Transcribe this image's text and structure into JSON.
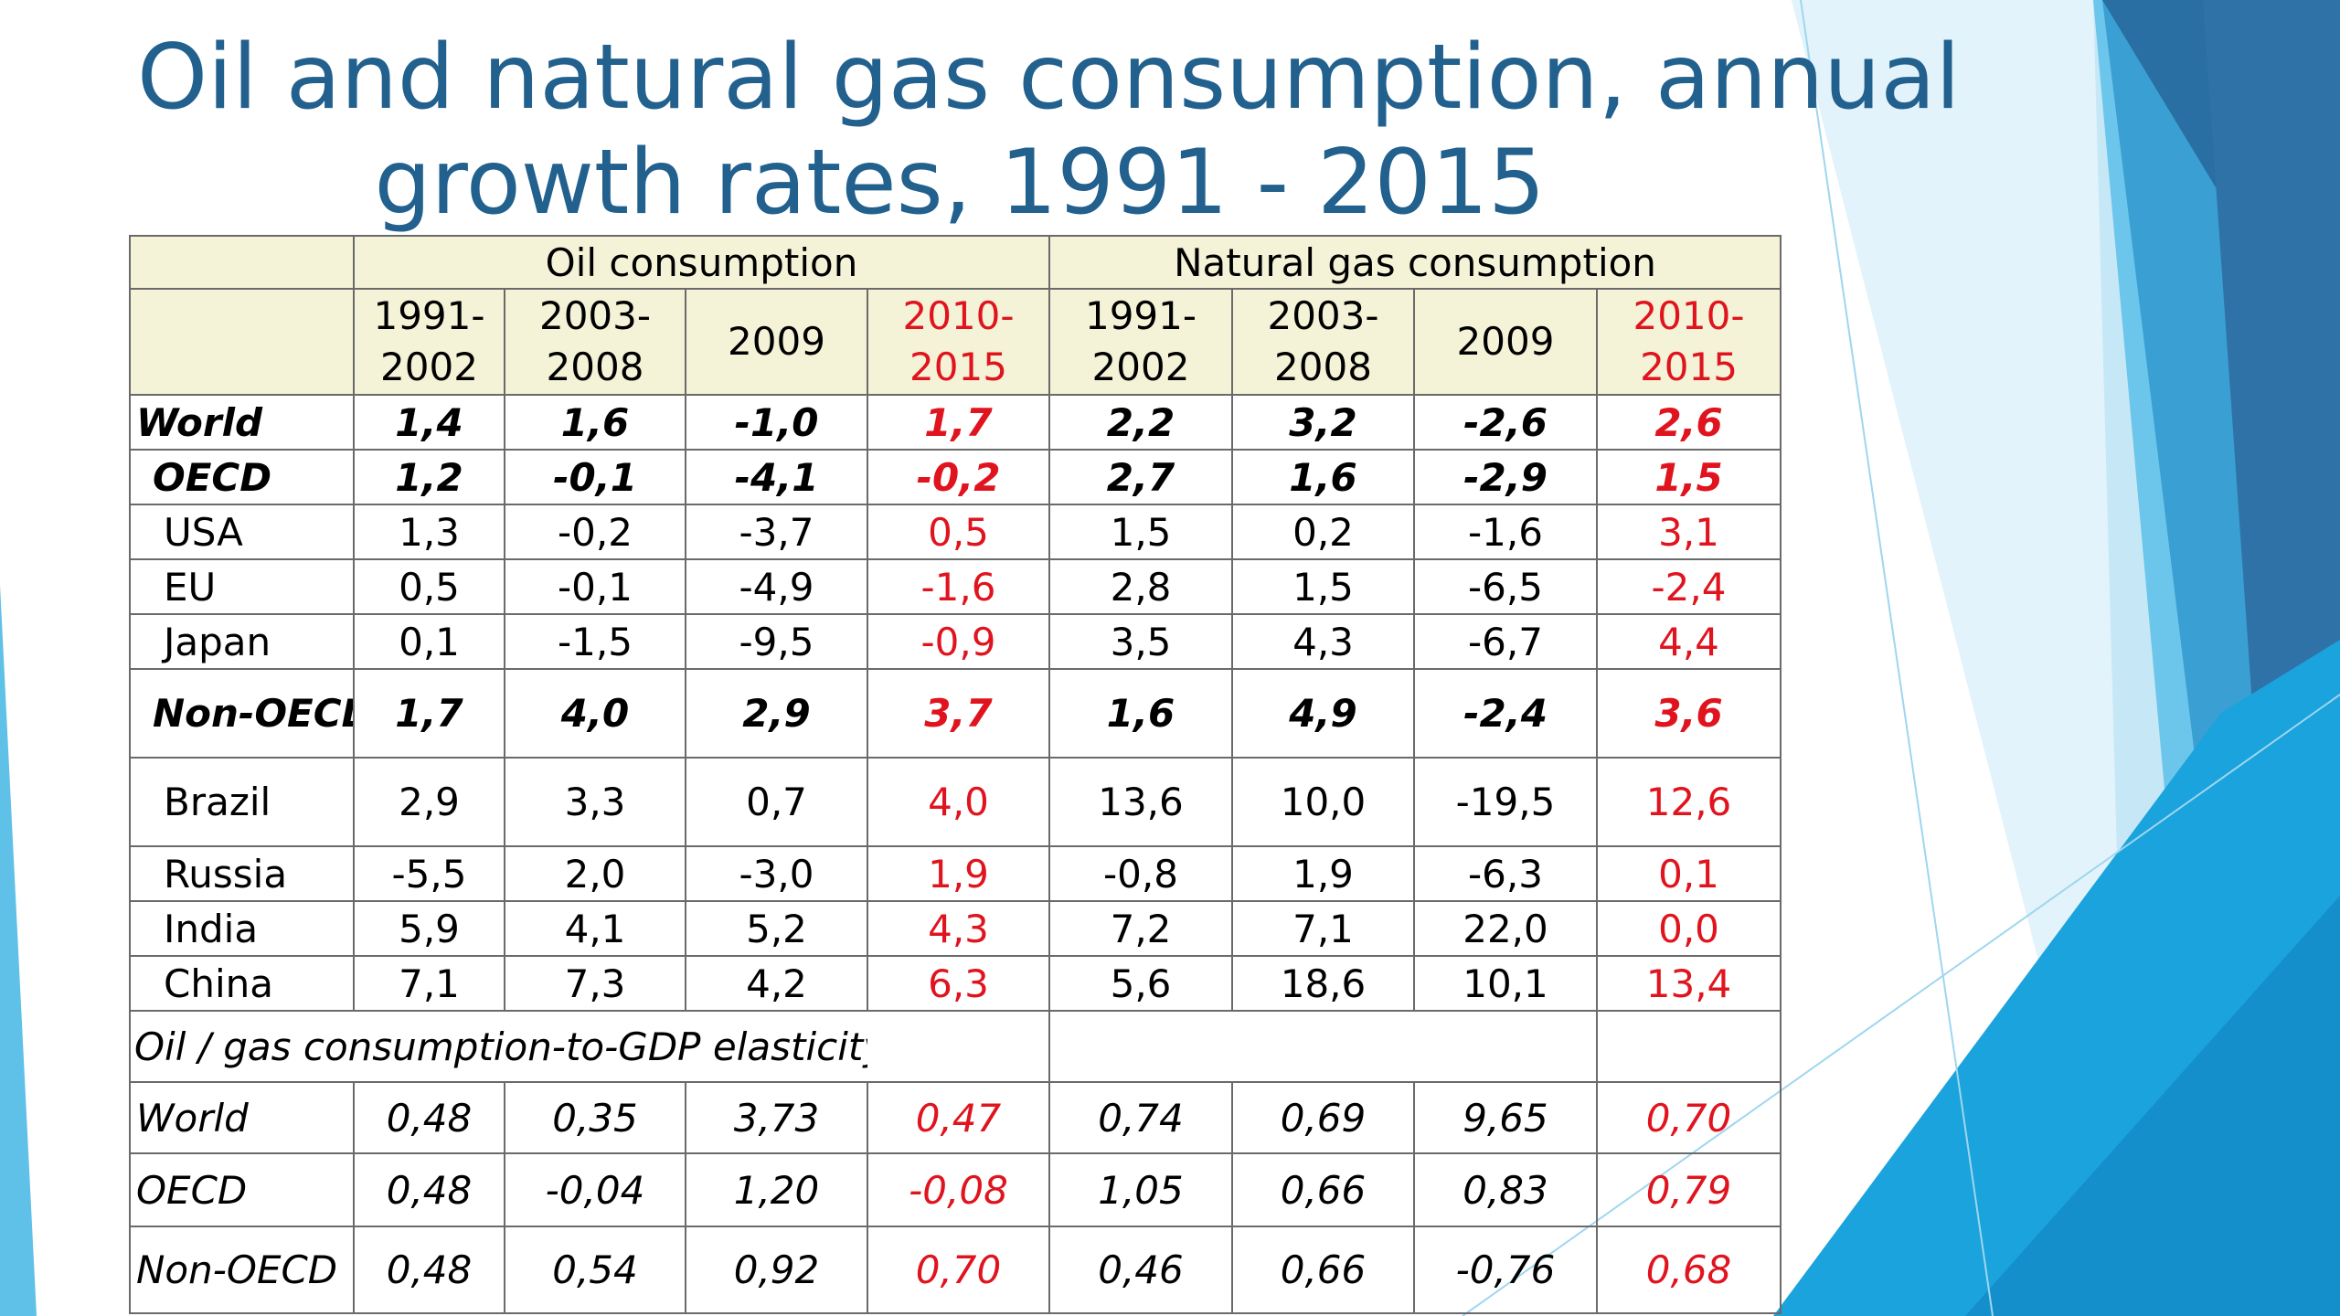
{
  "title_lines": [
    "Oil and natural gas consumption, annual",
    "growth rates, 1991 - 2015"
  ],
  "groups": {
    "oil": "Oil consumption",
    "gas": "Natural gas consumption"
  },
  "periods": [
    {
      "l1": "1991-",
      "l2": "2002"
    },
    {
      "l1": "2003-",
      "l2": "2008"
    },
    {
      "l1": "2009",
      "l2": ""
    },
    {
      "l1": "2010-",
      "l2": "2015"
    },
    {
      "l1": "1991-",
      "l2": "2002"
    },
    {
      "l1": "2003-",
      "l2": "2008"
    },
    {
      "l1": "2009",
      "l2": ""
    },
    {
      "l1": "2010-",
      "l2": "2015"
    }
  ],
  "rows": [
    {
      "label": "World",
      "values": [
        "1,4",
        "1,6",
        "-1,0",
        "1,7",
        "2,2",
        "3,2",
        "-2,6",
        "2,6"
      ]
    },
    {
      "label": "OECD",
      "values": [
        "1,2",
        "-0,1",
        "-4,1",
        "-0,2",
        "2,7",
        "1,6",
        "-2,9",
        "1,5"
      ]
    },
    {
      "label": "USA",
      "values": [
        "1,3",
        "-0,2",
        "-3,7",
        "0,5",
        "1,5",
        "0,2",
        "-1,6",
        "3,1"
      ]
    },
    {
      "label": "EU",
      "values": [
        "0,5",
        "-0,1",
        "-4,9",
        "-1,6",
        "2,8",
        "1,5",
        "-6,5",
        "-2,4"
      ]
    },
    {
      "label": "Japan",
      "values": [
        "0,1",
        "-1,5",
        "-9,5",
        "-0,9",
        "3,5",
        "4,3",
        "-6,7",
        "4,4"
      ]
    },
    {
      "label": "Non-OECD",
      "values": [
        "1,7",
        "4,0",
        "2,9",
        "3,7",
        "1,6",
        "4,9",
        "-2,4",
        "3,6"
      ]
    },
    {
      "label": "Brazil",
      "values": [
        "2,9",
        "3,3",
        "0,7",
        "4,0",
        "13,6",
        "10,0",
        "-19,5",
        "12,6"
      ]
    },
    {
      "label": "Russia",
      "values": [
        "-5,5",
        "2,0",
        "-3,0",
        "1,9",
        "-0,8",
        "1,9",
        "-6,3",
        "0,1"
      ]
    },
    {
      "label": "India",
      "values": [
        "5,9",
        "4,1",
        "5,2",
        "4,3",
        "7,2",
        "7,1",
        "22,0",
        "0,0"
      ]
    },
    {
      "label": "China",
      "values": [
        "7,1",
        "7,3",
        "4,2",
        "6,3",
        "5,6",
        "18,6",
        "10,1",
        "13,4"
      ]
    }
  ],
  "elasticity_label": "Oil / gas consumption-to-GDP  elasticity",
  "elasticity_rows": [
    {
      "label": "World",
      "values": [
        "0,48",
        "0,35",
        "3,73",
        "0,47",
        "0,74",
        "0,69",
        "9,65",
        "0,70"
      ]
    },
    {
      "label": "OECD",
      "values": [
        "0,48",
        "-0,04",
        "1,20",
        "-0,08",
        "1,05",
        "0,66",
        "0,83",
        "0,79"
      ]
    },
    {
      "label": "Non-OECD",
      "values": [
        "0,48",
        "0,54",
        "0,92",
        "0,70",
        "0,46",
        "0,66",
        "-0,76",
        "0,68"
      ]
    }
  ],
  "colors": {
    "title": "#22608e",
    "highlight": "#e0141e",
    "header_bg": "#f4f3d7"
  }
}
